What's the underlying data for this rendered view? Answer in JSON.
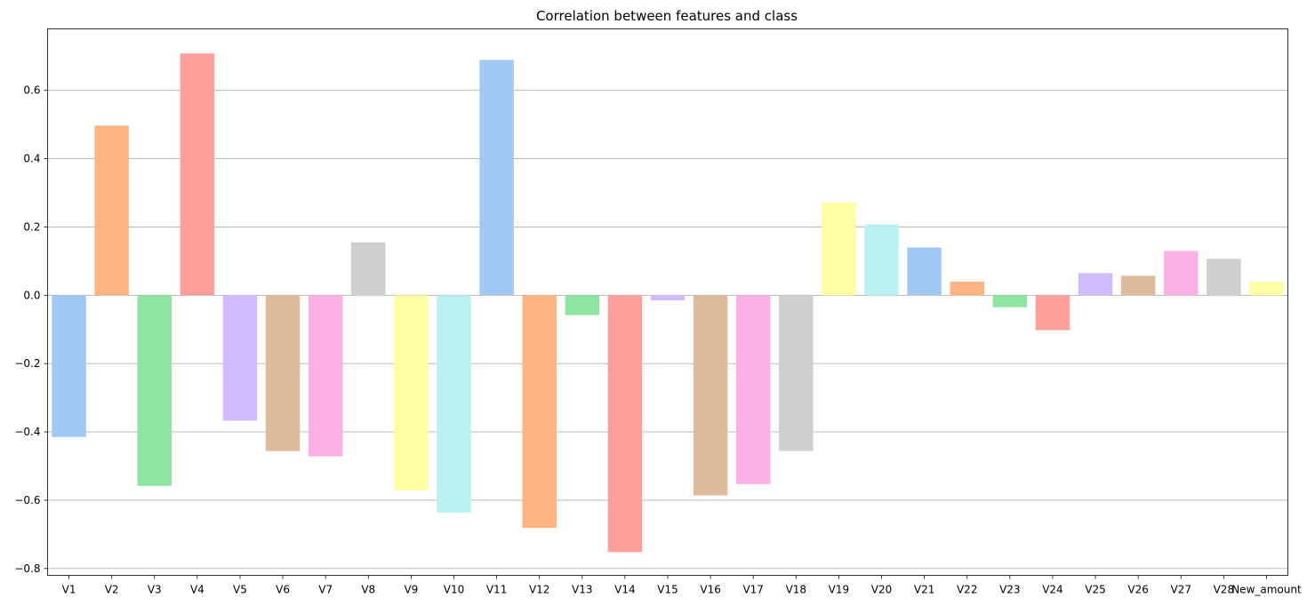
{
  "chart_data": {
    "type": "bar",
    "title": "Correlation between features and class",
    "xlabel": "",
    "ylabel": "",
    "ylim": [
      -0.82,
      0.78
    ],
    "grid": "y",
    "yticks": [
      -0.8,
      -0.6,
      -0.4,
      -0.2,
      0.0,
      0.2,
      0.4,
      0.6
    ],
    "ytick_labels": [
      "−0.8",
      "−0.6",
      "−0.4",
      "−0.2",
      "0.0",
      "0.2",
      "0.4",
      "0.6"
    ],
    "categories": [
      "V1",
      "V2",
      "V3",
      "V4",
      "V5",
      "V6",
      "V7",
      "V8",
      "V9",
      "V10",
      "V11",
      "V12",
      "V13",
      "V14",
      "V15",
      "V16",
      "V17",
      "V18",
      "V19",
      "V20",
      "V21",
      "V22",
      "V23",
      "V24",
      "V25",
      "V26",
      "V27",
      "V28",
      "New_amount"
    ],
    "values": [
      -0.415,
      0.497,
      -0.558,
      0.708,
      -0.367,
      -0.456,
      -0.472,
      0.155,
      -0.571,
      -0.636,
      0.689,
      -0.681,
      -0.058,
      -0.752,
      -0.015,
      -0.586,
      -0.553,
      -0.456,
      0.272,
      0.208,
      0.14,
      0.04,
      -0.035,
      -0.102,
      0.065,
      0.057,
      0.13,
      0.107,
      0.04
    ],
    "palette": [
      "#a1c9f4",
      "#ffb482",
      "#8de5a1",
      "#ff9f9b",
      "#d0bbff",
      "#debb9b",
      "#fab0e4",
      "#cfcfcf",
      "#fffea3",
      "#b9f2f0"
    ]
  }
}
